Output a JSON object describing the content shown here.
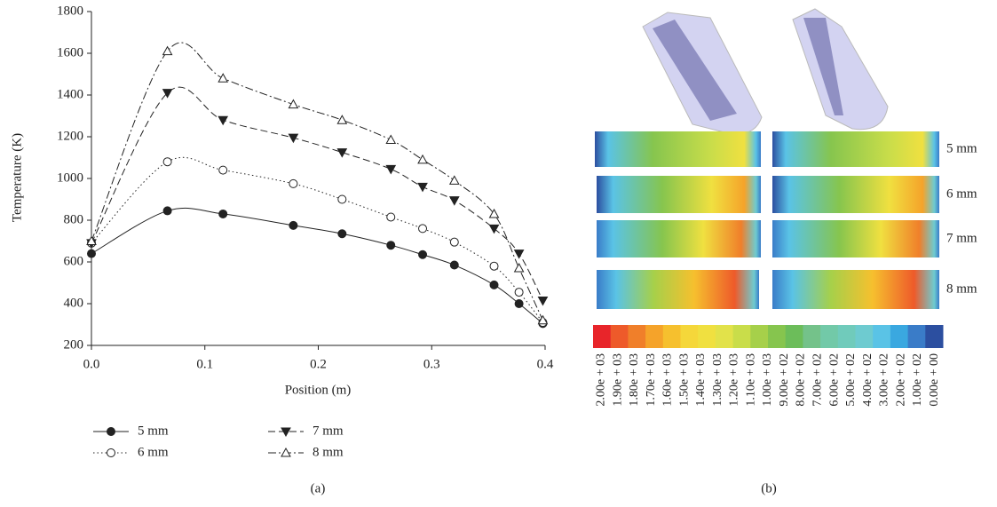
{
  "chart_data": {
    "type": "line",
    "xlabel": "Position (m)",
    "ylabel": "Temperature (K)",
    "x": [
      0,
      0.067,
      0.116,
      0.178,
      0.221,
      0.264,
      0.292,
      0.32,
      0.355,
      0.377,
      0.398
    ],
    "series": [
      {
        "name": "5 mm",
        "color": "#222222",
        "dash": "none",
        "marker": "circle",
        "marker_fill": "#222222",
        "values": [
          640,
          845,
          830,
          775,
          735,
          680,
          635,
          585,
          490,
          400,
          305
        ]
      },
      {
        "name": "6 mm",
        "color": "#222222",
        "dash": "1.5,3",
        "marker": "circle",
        "marker_fill": "#ffffff",
        "values": [
          690,
          1080,
          1040,
          975,
          900,
          815,
          760,
          695,
          580,
          455,
          310
        ]
      },
      {
        "name": "7 mm",
        "color": "#222222",
        "dash": "8,4",
        "marker": "triangle-down",
        "marker_fill": "#222222",
        "values": [
          690,
          1410,
          1280,
          1195,
          1125,
          1045,
          960,
          895,
          760,
          640,
          415
        ]
      },
      {
        "name": "8 mm",
        "color": "#222222",
        "dash": "9,3,2,3",
        "marker": "triangle-up",
        "marker_fill": "#ffffff",
        "values": [
          700,
          1610,
          1480,
          1355,
          1280,
          1185,
          1090,
          990,
          830,
          570,
          320
        ]
      }
    ],
    "xlim": [
      0,
      0.4
    ],
    "xticks": [
      {
        "value": 0,
        "label": "0.0"
      },
      0.1,
      0.2,
      0.3,
      0.4
    ],
    "ylim": [
      200,
      1800
    ],
    "yticks": [
      200,
      400,
      600,
      800,
      1000,
      1200,
      1400,
      1600,
      1800
    ],
    "grid": false
  },
  "contour_panel": {
    "row_labels": [
      "5 mm",
      "6 mm",
      "7 mm",
      "8 mm"
    ],
    "colorbar": {
      "colors": [
        "#e8252a",
        "#ee5a2a",
        "#f07f2a",
        "#f5a32a",
        "#f6c02e",
        "#f5d73a",
        "#f0e040",
        "#e2e24a",
        "#c9dd4a",
        "#a6d04a",
        "#86c54e",
        "#6cbd5a",
        "#74c28a",
        "#72c9a8",
        "#70cbbb",
        "#6ecbd0",
        "#5ac3e6",
        "#3aa8e0",
        "#3a7cc8",
        "#2c4fa0"
      ],
      "labels": [
        "2.00e + 03",
        "1.90e + 03",
        "1.80e + 03",
        "1.70e + 03",
        "1.60e + 03",
        "1.50e + 03",
        "1.40e + 03",
        "1.30e + 03",
        "1.20e + 03",
        "1.10e + 03",
        "1.00e + 03",
        "9.00e + 02",
        "8.00e + 02",
        "7.00e + 02",
        "6.00e + 02",
        "5.00e + 02",
        "4.00e + 02",
        "3.00e + 02",
        "2.00e + 02",
        "1.00e + 02",
        "0.00e + 00"
      ]
    }
  },
  "panel_labels": [
    "(a)",
    "(b)"
  ]
}
